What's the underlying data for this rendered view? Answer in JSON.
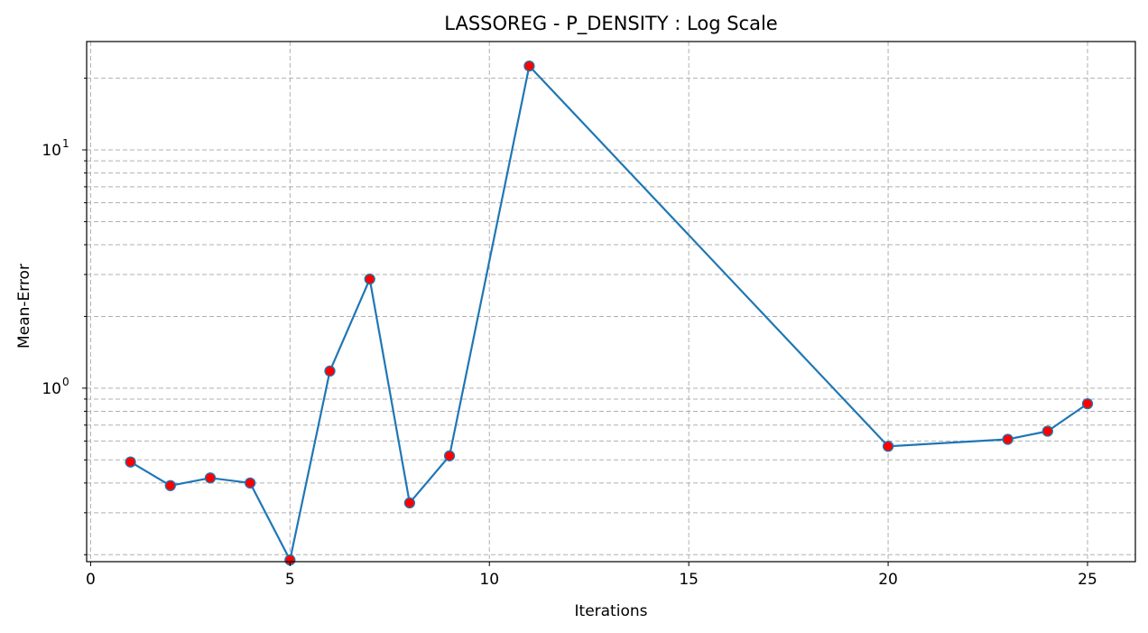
{
  "chart_data": {
    "type": "line",
    "title": "LASSOREG - P_DENSITY : Log Scale",
    "xlabel": "Iterations",
    "ylabel": "Mean-Error",
    "yscale": "log",
    "xlim": [
      -0.1,
      26.2
    ],
    "ylim": [
      0.187,
      28.5
    ],
    "grid": true,
    "x_ticks": [
      0,
      5,
      10,
      15,
      20,
      25
    ],
    "y_ticks": [
      {
        "value": 1,
        "base": "10",
        "exp": "0"
      },
      {
        "value": 10,
        "base": "10",
        "exp": "1"
      }
    ],
    "y_minor_ticks": [
      0.2,
      0.3,
      0.4,
      0.5,
      0.6,
      0.7,
      0.8,
      0.9,
      2,
      3,
      4,
      5,
      6,
      7,
      8,
      9,
      20
    ],
    "series": [
      {
        "line_color": "#1f77b4",
        "marker_color": "#ff0000",
        "marker_edge_color": "#1f77b4",
        "x": [
          1,
          2,
          3,
          4,
          5,
          6,
          7,
          8,
          9,
          11,
          20,
          23,
          24,
          25
        ],
        "y": [
          0.49,
          0.39,
          0.42,
          0.4,
          0.19,
          1.18,
          2.87,
          0.33,
          0.52,
          22.5,
          0.57,
          0.61,
          0.66,
          0.86
        ]
      }
    ]
  }
}
